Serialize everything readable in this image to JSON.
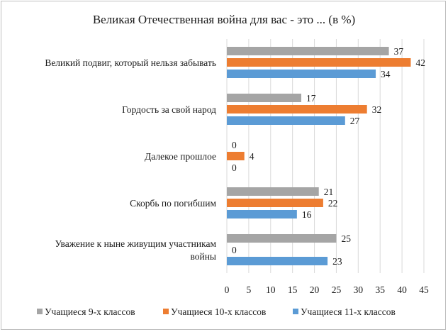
{
  "chart_data": {
    "type": "bar",
    "orientation": "horizontal",
    "title": "Великая Отечественная  война для вас - это ...  (в %)",
    "categories": [
      [
        "Великий подвиг, который нельзя забывать"
      ],
      [
        "Гордость за свой народ"
      ],
      [
        "Далекое прошлое"
      ],
      [
        "Скорбь по погибшим"
      ],
      [
        "Уважение к ныне живущим участникам",
        "войны"
      ]
    ],
    "series": [
      {
        "name": "Учащиеся 9-х классов",
        "color": "#a5a5a5",
        "values": [
          37,
          17,
          0,
          21,
          25
        ]
      },
      {
        "name": "Учащиеся 10-х классов",
        "color": "#ed7d31",
        "values": [
          42,
          32,
          4,
          22,
          0
        ]
      },
      {
        "name": "Учащиеся 11-х классов",
        "color": "#5b9bd5",
        "values": [
          34,
          27,
          0,
          16,
          23
        ]
      }
    ],
    "xlim": [
      0,
      45
    ],
    "xticks": [
      0,
      5,
      10,
      15,
      20,
      25,
      30,
      35,
      40,
      45
    ],
    "grid": "vertical",
    "legend_position": "bottom",
    "data_labels": true
  }
}
